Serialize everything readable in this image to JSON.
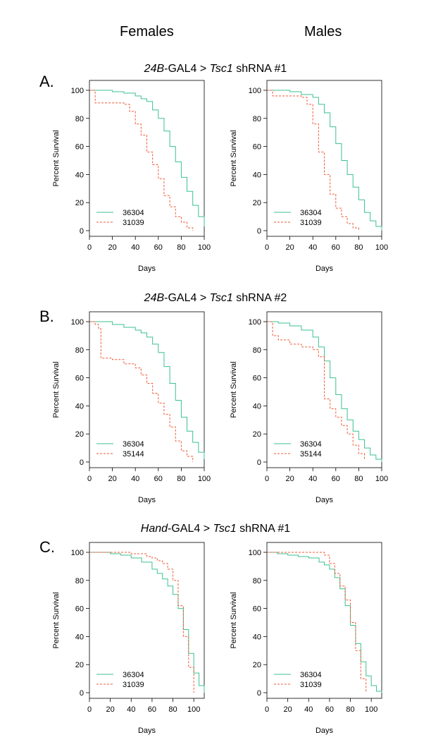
{
  "columns": {
    "left": "Females",
    "right": "Males"
  },
  "colors": {
    "control": "#3cc28f",
    "rnai": "#f05a37"
  },
  "panels": [
    {
      "letter": "A.",
      "title": {
        "driver": "24B",
        "mid": "-GAL4 > ",
        "gene": "Tsc1",
        "rest": " shRNA #1"
      }
    },
    {
      "letter": "B.",
      "title": {
        "driver": "24B",
        "mid": "-GAL4 > ",
        "gene": "Tsc1",
        "rest": " shRNA #2"
      }
    },
    {
      "letter": "C.",
      "title": {
        "driver": "Hand",
        "mid": "-GAL4 > ",
        "gene": "Tsc1",
        "rest": " shRNA #1"
      }
    }
  ],
  "chart_data": [
    {
      "type": "line",
      "panel": "A",
      "sex": "Females",
      "xlabel": "Days",
      "ylabel": "Percent Survival",
      "xlim": [
        0,
        100
      ],
      "ylim": [
        0,
        100
      ],
      "xticks": [
        0,
        20,
        40,
        60,
        80,
        100
      ],
      "yticks": [
        0,
        20,
        40,
        60,
        80,
        100
      ],
      "legend": "bottom-left",
      "grid": false,
      "series": [
        {
          "name": "36304",
          "style": "solid",
          "color": "#3cc28f",
          "x": [
            0,
            8,
            20,
            30,
            40,
            45,
            50,
            55,
            60,
            65,
            70,
            75,
            80,
            85,
            90,
            95,
            100
          ],
          "y": [
            100,
            100,
            99,
            98,
            96,
            94,
            92,
            86,
            80,
            71,
            60,
            49,
            38,
            28,
            18,
            10,
            3
          ]
        },
        {
          "name": "31039",
          "style": "dashed",
          "color": "#f05a37",
          "x": [
            0,
            5,
            10,
            20,
            30,
            35,
            40,
            45,
            50,
            55,
            60,
            65,
            70,
            75,
            80,
            85,
            90
          ],
          "y": [
            100,
            91,
            91,
            91,
            90,
            85,
            76,
            68,
            56,
            47,
            37,
            25,
            17,
            10,
            6,
            2,
            0
          ]
        }
      ]
    },
    {
      "type": "line",
      "panel": "A",
      "sex": "Males",
      "xlabel": "Days",
      "ylabel": "Percent Survival",
      "xlim": [
        0,
        100
      ],
      "ylim": [
        0,
        100
      ],
      "xticks": [
        0,
        20,
        40,
        60,
        80,
        100
      ],
      "yticks": [
        0,
        20,
        40,
        60,
        80,
        100
      ],
      "legend": "bottom-left",
      "grid": false,
      "series": [
        {
          "name": "36304",
          "style": "solid",
          "color": "#3cc28f",
          "x": [
            0,
            10,
            20,
            30,
            40,
            45,
            50,
            55,
            60,
            65,
            70,
            75,
            80,
            85,
            90,
            95,
            100
          ],
          "y": [
            100,
            100,
            99,
            97,
            95,
            90,
            84,
            74,
            62,
            50,
            40,
            31,
            22,
            13,
            7,
            3,
            0
          ]
        },
        {
          "name": "31039",
          "style": "dashed",
          "color": "#f05a37",
          "x": [
            0,
            5,
            10,
            20,
            30,
            35,
            40,
            45,
            50,
            55,
            60,
            65,
            70,
            75,
            80
          ],
          "y": [
            100,
            96,
            96,
            96,
            95,
            90,
            76,
            56,
            40,
            26,
            16,
            10,
            5,
            2,
            0
          ]
        }
      ]
    },
    {
      "type": "line",
      "panel": "B",
      "sex": "Females",
      "xlabel": "Days",
      "ylabel": "Percent Survival",
      "xlim": [
        0,
        100
      ],
      "ylim": [
        0,
        100
      ],
      "xticks": [
        0,
        20,
        40,
        60,
        80,
        100
      ],
      "yticks": [
        0,
        20,
        40,
        60,
        80,
        100
      ],
      "legend": "bottom-left",
      "grid": false,
      "series": [
        {
          "name": "36304",
          "style": "solid",
          "color": "#3cc28f",
          "x": [
            0,
            10,
            20,
            30,
            40,
            45,
            50,
            55,
            60,
            65,
            70,
            75,
            80,
            85,
            90,
            95,
            100
          ],
          "y": [
            100,
            100,
            98,
            96,
            94,
            92,
            89,
            84,
            78,
            68,
            56,
            44,
            32,
            22,
            14,
            7,
            2
          ]
        },
        {
          "name": "35144",
          "style": "dashed",
          "color": "#f05a37",
          "x": [
            0,
            5,
            8,
            10,
            20,
            30,
            40,
            45,
            50,
            55,
            60,
            65,
            70,
            75,
            80,
            85,
            90
          ],
          "y": [
            100,
            98,
            95,
            74,
            73,
            70,
            67,
            62,
            56,
            49,
            42,
            34,
            25,
            15,
            8,
            4,
            0
          ]
        }
      ]
    },
    {
      "type": "line",
      "panel": "B",
      "sex": "Males",
      "xlabel": "Days",
      "ylabel": "Percent Survival",
      "xlim": [
        0,
        100
      ],
      "ylim": [
        0,
        100
      ],
      "xticks": [
        0,
        20,
        40,
        60,
        80,
        100
      ],
      "yticks": [
        0,
        20,
        40,
        60,
        80,
        100
      ],
      "legend": "bottom-left",
      "grid": false,
      "series": [
        {
          "name": "36304",
          "style": "solid",
          "color": "#3cc28f",
          "x": [
            0,
            10,
            20,
            30,
            40,
            45,
            50,
            55,
            60,
            65,
            70,
            75,
            80,
            85,
            90,
            95,
            100
          ],
          "y": [
            100,
            99,
            97,
            94,
            89,
            82,
            72,
            60,
            48,
            38,
            30,
            22,
            16,
            10,
            5,
            2,
            0
          ]
        },
        {
          "name": "35144",
          "style": "dashed",
          "color": "#f05a37",
          "x": [
            0,
            5,
            10,
            20,
            30,
            40,
            45,
            50,
            55,
            60,
            65,
            70,
            75,
            80,
            85
          ],
          "y": [
            100,
            90,
            87,
            84,
            82,
            80,
            75,
            45,
            38,
            32,
            26,
            20,
            12,
            6,
            2
          ]
        }
      ]
    },
    {
      "type": "line",
      "panel": "C",
      "sex": "Females",
      "xlabel": "Days",
      "ylabel": "Percent Survival",
      "xlim": [
        0,
        110
      ],
      "ylim": [
        0,
        100
      ],
      "xticks": [
        0,
        20,
        40,
        60,
        80,
        100
      ],
      "yticks": [
        0,
        20,
        40,
        60,
        80,
        100
      ],
      "legend": "bottom-left",
      "grid": false,
      "series": [
        {
          "name": "36304",
          "style": "solid",
          "color": "#3cc28f",
          "x": [
            0,
            10,
            20,
            30,
            40,
            50,
            60,
            65,
            70,
            75,
            80,
            85,
            90,
            95,
            100,
            105,
            110
          ],
          "y": [
            100,
            100,
            99,
            98,
            96,
            93,
            88,
            85,
            81,
            76,
            70,
            60,
            45,
            28,
            14,
            5,
            0
          ]
        },
        {
          "name": "31039",
          "style": "dashed",
          "color": "#f05a37",
          "x": [
            0,
            20,
            40,
            55,
            60,
            65,
            70,
            75,
            80,
            85,
            90,
            95,
            100
          ],
          "y": [
            100,
            100,
            99,
            97,
            96,
            94,
            92,
            88,
            80,
            62,
            40,
            18,
            0
          ]
        }
      ]
    },
    {
      "type": "line",
      "panel": "C",
      "sex": "Males",
      "xlabel": "Days",
      "ylabel": "Percent Survival",
      "xlim": [
        0,
        110
      ],
      "ylim": [
        0,
        100
      ],
      "xticks": [
        0,
        20,
        40,
        60,
        80,
        100
      ],
      "yticks": [
        0,
        20,
        40,
        60,
        80,
        100
      ],
      "legend": "bottom-left",
      "grid": false,
      "series": [
        {
          "name": "36304",
          "style": "solid",
          "color": "#3cc28f",
          "x": [
            0,
            10,
            20,
            30,
            40,
            50,
            55,
            60,
            65,
            70,
            75,
            80,
            85,
            90,
            95,
            100,
            105,
            110
          ],
          "y": [
            100,
            99,
            98,
            97,
            96,
            93,
            91,
            88,
            82,
            74,
            62,
            48,
            35,
            22,
            12,
            5,
            1,
            0
          ]
        },
        {
          "name": "31039",
          "style": "dashed",
          "color": "#f05a37",
          "x": [
            0,
            10,
            30,
            50,
            55,
            60,
            65,
            70,
            75,
            80,
            85,
            90,
            95
          ],
          "y": [
            100,
            100,
            100,
            100,
            98,
            92,
            85,
            76,
            66,
            50,
            30,
            10,
            0
          ]
        }
      ]
    }
  ]
}
